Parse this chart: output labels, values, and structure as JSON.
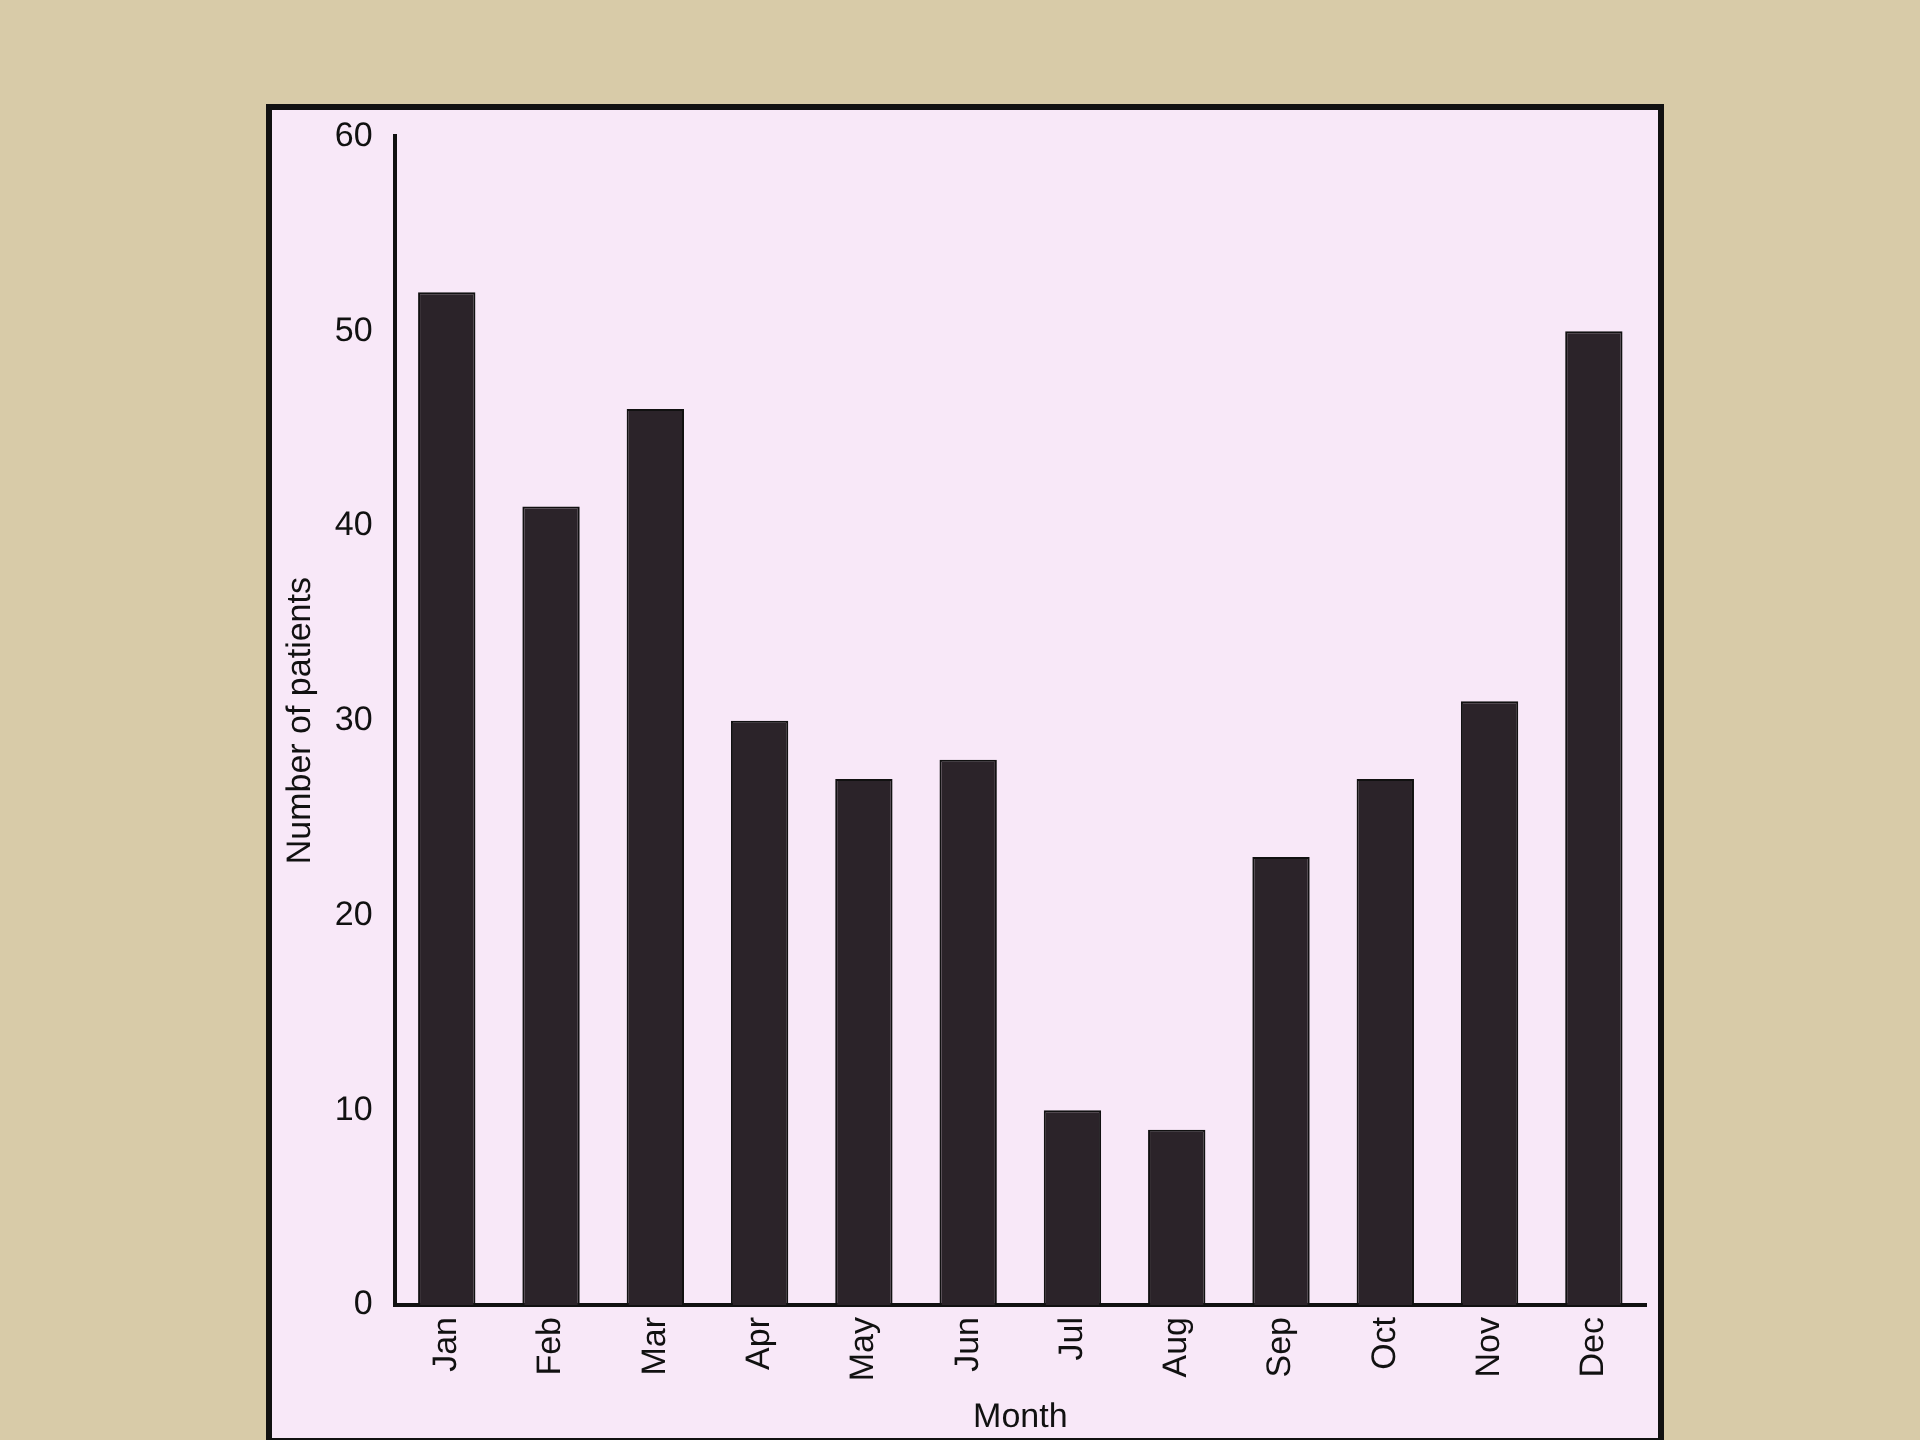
{
  "chart_data": {
    "type": "bar",
    "xlabel": "Month",
    "ylabel": "Number of patients",
    "categories": [
      "Jan",
      "Feb",
      "Mar",
      "Apr",
      "May",
      "Jun",
      "Jul",
      "Aug",
      "Sep",
      "Oct",
      "Nov",
      "Dec"
    ],
    "values": [
      52,
      41,
      46,
      30,
      27,
      28,
      10,
      9,
      23,
      27,
      31,
      50
    ],
    "color": "#2b2329",
    "ylim": [
      0,
      60
    ],
    "yticks": [
      0,
      10,
      20,
      30,
      40,
      50,
      60
    ],
    "grid": false,
    "legend": false
  }
}
